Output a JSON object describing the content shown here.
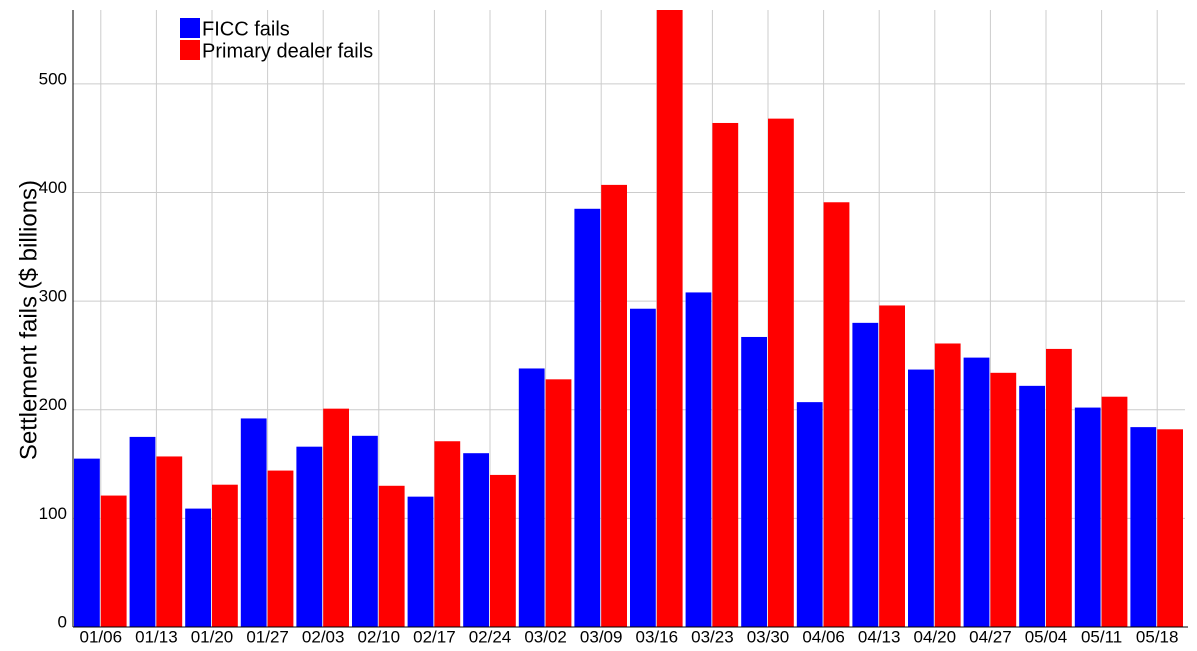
{
  "chart_data": {
    "type": "bar",
    "y_label": "Settlement fails ($ billions)",
    "categories": [
      "01/06",
      "01/13",
      "01/20",
      "01/27",
      "02/03",
      "02/10",
      "02/17",
      "02/24",
      "03/02",
      "03/09",
      "03/16",
      "03/23",
      "03/30",
      "04/06",
      "04/13",
      "04/20",
      "04/27",
      "05/04",
      "05/11",
      "05/18"
    ],
    "series": [
      {
        "name": "FICC fails",
        "color": "#0000ff",
        "values": [
          155,
          175,
          109,
          192,
          166,
          176,
          120,
          160,
          238,
          385,
          293,
          308,
          267,
          207,
          280,
          237,
          248,
          222,
          202,
          184
        ]
      },
      {
        "name": "Primary dealer fails",
        "color": "#ff0000",
        "values": [
          121,
          157,
          131,
          144,
          201,
          130,
          171,
          140,
          228,
          407,
          570,
          464,
          468,
          391,
          296,
          261,
          234,
          256,
          212,
          182
        ]
      }
    ],
    "ylim": [
      0,
      568
    ],
    "yticks": [
      0,
      100,
      200,
      300,
      400,
      500
    ],
    "grid": true,
    "legend": "upper left"
  }
}
